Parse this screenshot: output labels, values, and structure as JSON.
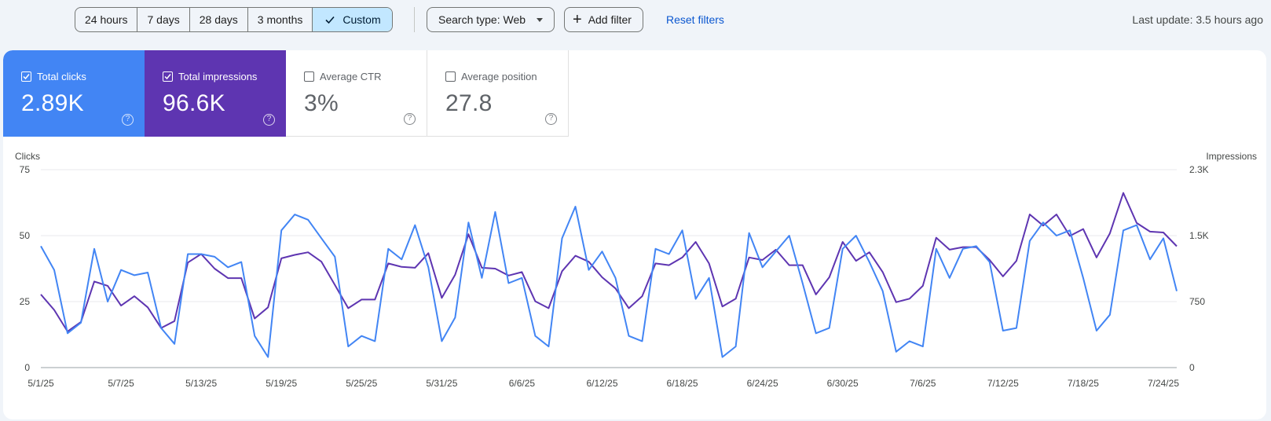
{
  "toolbar": {
    "ranges": [
      "24 hours",
      "7 days",
      "28 days",
      "3 months",
      "Custom"
    ],
    "selected_range": "Custom",
    "search_type": "Search type: Web",
    "add_filter": "Add filter",
    "reset_filters": "Reset filters",
    "last_update": "Last update: 3.5 hours ago"
  },
  "metrics": [
    {
      "label": "Total clicks",
      "value": "2.89K",
      "checked": true,
      "color": "#4285f4"
    },
    {
      "label": "Total impressions",
      "value": "96.6K",
      "checked": true,
      "color": "#5e35b1"
    },
    {
      "label": "Average CTR",
      "value": "3%",
      "checked": false
    },
    {
      "label": "Average position",
      "value": "27.8",
      "checked": false
    }
  ],
  "chart": {
    "left_axis_title": "Clicks",
    "right_axis_title": "Impressions",
    "left_ticks": [
      "75",
      "50",
      "25",
      "0"
    ],
    "right_ticks": [
      "2.3K",
      "1.5K",
      "750",
      "0"
    ],
    "x_ticks": [
      "5/1/25",
      "5/7/25",
      "5/13/25",
      "5/19/25",
      "5/25/25",
      "5/31/25",
      "6/6/25",
      "6/12/25",
      "6/18/25",
      "6/24/25",
      "6/30/25",
      "7/6/25",
      "7/12/25",
      "7/18/25",
      "7/24/25"
    ]
  },
  "chart_data": {
    "type": "line",
    "x": [
      "5/1/25",
      "5/2/25",
      "5/3/25",
      "5/4/25",
      "5/5/25",
      "5/6/25",
      "5/7/25",
      "5/8/25",
      "5/9/25",
      "5/10/25",
      "5/11/25",
      "5/12/25",
      "5/13/25",
      "5/14/25",
      "5/15/25",
      "5/16/25",
      "5/17/25",
      "5/18/25",
      "5/19/25",
      "5/20/25",
      "5/21/25",
      "5/22/25",
      "5/23/25",
      "5/24/25",
      "5/25/25",
      "5/26/25",
      "5/27/25",
      "5/28/25",
      "5/29/25",
      "5/30/25",
      "5/31/25",
      "6/1/25",
      "6/2/25",
      "6/3/25",
      "6/4/25",
      "6/5/25",
      "6/6/25",
      "6/7/25",
      "6/8/25",
      "6/9/25",
      "6/10/25",
      "6/11/25",
      "6/12/25",
      "6/13/25",
      "6/14/25",
      "6/15/25",
      "6/16/25",
      "6/17/25",
      "6/18/25",
      "6/19/25",
      "6/20/25",
      "6/21/25",
      "6/22/25",
      "6/23/25",
      "6/24/25",
      "6/25/25",
      "6/26/25",
      "6/27/25",
      "6/28/25",
      "6/29/25",
      "6/30/25",
      "7/1/25",
      "7/2/25",
      "7/3/25",
      "7/4/25",
      "7/5/25",
      "7/6/25",
      "7/7/25",
      "7/8/25",
      "7/9/25",
      "7/10/25",
      "7/11/25",
      "7/12/25",
      "7/13/25",
      "7/14/25",
      "7/15/25",
      "7/16/25",
      "7/17/25",
      "7/18/25",
      "7/19/25",
      "7/20/25",
      "7/21/25",
      "7/22/25",
      "7/23/25",
      "7/24/25",
      "7/25/25"
    ],
    "series": [
      {
        "name": "Clicks",
        "axis": "left",
        "color": "#4285f4",
        "values": [
          46,
          37,
          13,
          17,
          45,
          25,
          37,
          35,
          36,
          15,
          9,
          43,
          43,
          42,
          38,
          40,
          12,
          4,
          52,
          58,
          56,
          49,
          42,
          8,
          12,
          10,
          45,
          41,
          54,
          38,
          10,
          19,
          55,
          34,
          59,
          32,
          34,
          12,
          8,
          49,
          61,
          37,
          44,
          34,
          12,
          10,
          45,
          43,
          52,
          26,
          34,
          4,
          8,
          51,
          38,
          44,
          50,
          32,
          13,
          15,
          45,
          50,
          40,
          29,
          6,
          10,
          8,
          45,
          34,
          45,
          46,
          40,
          14,
          15,
          48,
          55,
          50,
          52,
          34,
          14,
          20,
          52,
          54,
          41,
          49,
          29
        ]
      },
      {
        "name": "Impressions",
        "axis": "right",
        "color": "#5e35b1",
        "values": [
          850,
          670,
          420,
          530,
          1000,
          950,
          720,
          830,
          700,
          460,
          540,
          1220,
          1320,
          1150,
          1040,
          1040,
          570,
          700,
          1270,
          1310,
          1340,
          1230,
          960,
          690,
          790,
          790,
          1210,
          1170,
          1160,
          1330,
          810,
          1080,
          1550,
          1160,
          1150,
          1070,
          1110,
          770,
          690,
          1120,
          1300,
          1230,
          1050,
          920,
          690,
          830,
          1210,
          1190,
          1280,
          1460,
          1210,
          710,
          800,
          1280,
          1250,
          1370,
          1190,
          1190,
          850,
          1050,
          1460,
          1240,
          1340,
          1110,
          760,
          800,
          950,
          1510,
          1370,
          1400,
          1400,
          1250,
          1060,
          1240,
          1780,
          1650,
          1780,
          1530,
          1610,
          1280,
          1560,
          2030,
          1680,
          1580,
          1570,
          1410
        ]
      }
    ],
    "y_left_range": [
      0,
      75
    ],
    "y_right_range": [
      0,
      2300
    ],
    "grid": true
  }
}
